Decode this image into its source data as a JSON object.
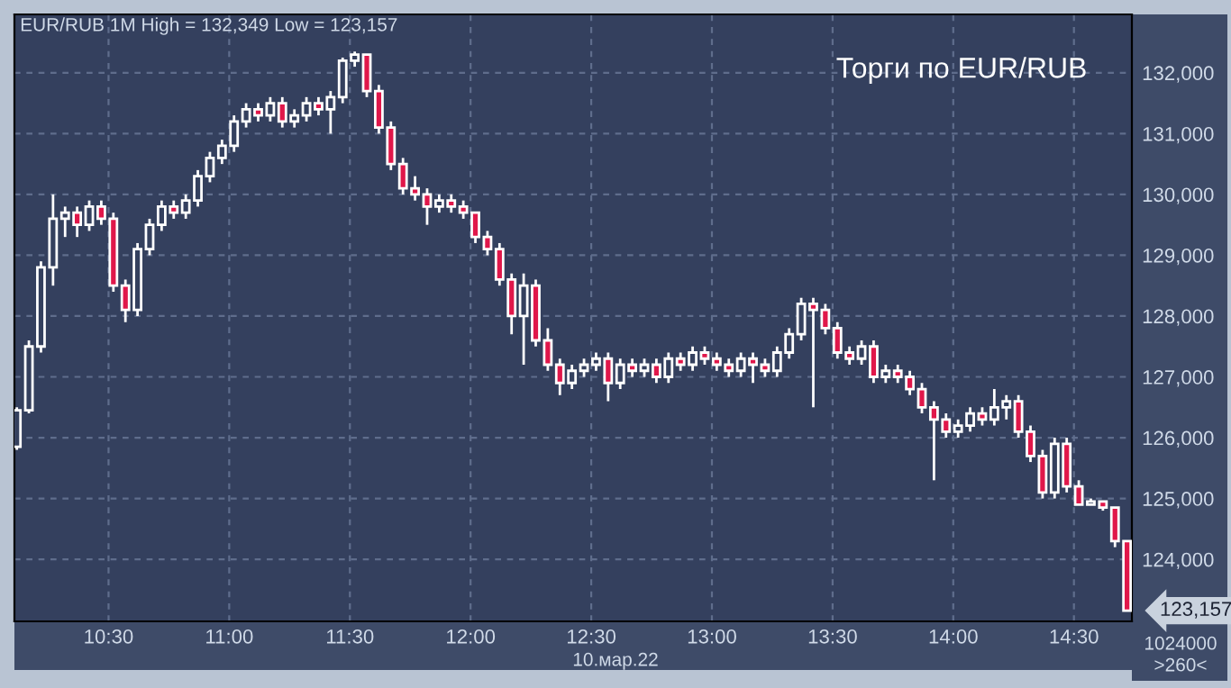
{
  "chart_data": {
    "type": "candlestick",
    "title": "Торги по EUR/RUB",
    "subtitle": "EUR/RUB 1M High = 132,349 Low = 123,157",
    "annotations": [
      "10.мар.22",
      "1024000",
      ">260<",
      "123,157"
    ],
    "x": [
      10.12,
      10.17,
      10.22,
      10.27,
      10.32,
      10.37,
      10.42,
      10.47,
      10.52,
      10.57,
      10.62,
      10.67,
      10.72,
      10.77,
      10.82,
      10.87,
      10.92,
      10.97,
      11.02,
      11.07,
      11.12,
      11.17,
      11.22,
      11.27,
      11.32,
      11.37,
      11.42,
      11.47,
      11.52,
      11.57,
      11.62,
      11.67,
      11.72,
      11.77,
      11.82,
      11.87,
      11.92,
      11.97,
      12.02,
      12.07,
      12.12,
      12.17,
      12.22,
      12.27,
      12.32,
      12.37,
      12.42,
      12.47,
      12.52,
      12.57,
      12.62,
      12.67,
      12.72,
      12.77,
      12.82,
      12.87,
      12.92,
      12.97,
      13.02,
      13.07,
      13.12,
      13.17,
      13.22,
      13.27,
      13.32,
      13.37,
      13.42,
      13.47,
      13.52,
      13.57,
      13.62,
      13.67,
      13.72,
      13.77,
      13.82,
      13.87,
      13.92,
      13.97,
      14.02,
      14.07,
      14.12,
      14.17,
      14.22,
      14.27,
      14.32,
      14.37,
      14.42,
      14.47,
      14.52,
      14.57,
      14.62,
      14.67,
      14.72
    ],
    "ohlc": [
      [
        125850,
        126500,
        125800,
        126450
      ],
      [
        126450,
        127600,
        126400,
        127500
      ],
      [
        127500,
        128900,
        127400,
        128800
      ],
      [
        128800,
        130000,
        128500,
        129600
      ],
      [
        129600,
        129800,
        129300,
        129700
      ],
      [
        129700,
        129800,
        129300,
        129500
      ],
      [
        129500,
        129900,
        129400,
        129800
      ],
      [
        129800,
        129900,
        129500,
        129600
      ],
      [
        129600,
        129700,
        128400,
        128500
      ],
      [
        128500,
        128600,
        127900,
        128100
      ],
      [
        128100,
        129200,
        128000,
        129100
      ],
      [
        129100,
        129600,
        129000,
        129500
      ],
      [
        129500,
        129900,
        129400,
        129800
      ],
      [
        129800,
        129900,
        129600,
        129700
      ],
      [
        129700,
        130000,
        129600,
        129900
      ],
      [
        129900,
        130400,
        129800,
        130300
      ],
      [
        130300,
        130700,
        130200,
        130600
      ],
      [
        130600,
        130900,
        130500,
        130800
      ],
      [
        130800,
        131300,
        130700,
        131200
      ],
      [
        131200,
        131500,
        131100,
        131400
      ],
      [
        131400,
        131500,
        131200,
        131300
      ],
      [
        131300,
        131600,
        131200,
        131500
      ],
      [
        131500,
        131600,
        131100,
        131200
      ],
      [
        131200,
        131400,
        131100,
        131300
      ],
      [
        131300,
        131600,
        131200,
        131500
      ],
      [
        131500,
        131600,
        131300,
        131400
      ],
      [
        131400,
        131700,
        131000,
        131600
      ],
      [
        131600,
        132250,
        131500,
        132200
      ],
      [
        132200,
        132349,
        132100,
        132300
      ],
      [
        132300,
        132300,
        131600,
        131700
      ],
      [
        131700,
        131800,
        131000,
        131100
      ],
      [
        131100,
        131200,
        130400,
        130500
      ],
      [
        130500,
        130600,
        130000,
        130100
      ],
      [
        130100,
        130300,
        129900,
        130000
      ],
      [
        130000,
        130100,
        129500,
        129800
      ],
      [
        129800,
        130000,
        129700,
        129900
      ],
      [
        129900,
        130000,
        129700,
        129800
      ],
      [
        129800,
        129900,
        129600,
        129700
      ],
      [
        129700,
        129700,
        129200,
        129300
      ],
      [
        129300,
        129400,
        129000,
        129100
      ],
      [
        129100,
        129200,
        128500,
        128600
      ],
      [
        128600,
        128700,
        127700,
        128000
      ],
      [
        128000,
        128700,
        127200,
        128500
      ],
      [
        128500,
        128600,
        127500,
        127600
      ],
      [
        127600,
        127800,
        127100,
        127200
      ],
      [
        127200,
        127300,
        126700,
        126900
      ],
      [
        126900,
        127200,
        126800,
        127100
      ],
      [
        127100,
        127300,
        127000,
        127200
      ],
      [
        127200,
        127400,
        127100,
        127300
      ],
      [
        127300,
        127400,
        126600,
        126900
      ],
      [
        126900,
        127300,
        126800,
        127200
      ],
      [
        127200,
        127300,
        127000,
        127100
      ],
      [
        127100,
        127300,
        127000,
        127200
      ],
      [
        127200,
        127300,
        126900,
        127000
      ],
      [
        127000,
        127400,
        126900,
        127300
      ],
      [
        127300,
        127400,
        127100,
        127200
      ],
      [
        127200,
        127500,
        127100,
        127400
      ],
      [
        127400,
        127500,
        127200,
        127300
      ],
      [
        127300,
        127400,
        127100,
        127200
      ],
      [
        127200,
        127300,
        127000,
        127100
      ],
      [
        127100,
        127400,
        127000,
        127300
      ],
      [
        127300,
        127400,
        126900,
        127200
      ],
      [
        127200,
        127300,
        127000,
        127100
      ],
      [
        127100,
        127500,
        127000,
        127400
      ],
      [
        127400,
        127800,
        127300,
        127700
      ],
      [
        127700,
        128300,
        127600,
        128200
      ],
      [
        128200,
        128300,
        126500,
        128100
      ],
      [
        128100,
        128200,
        127700,
        127800
      ],
      [
        127800,
        127900,
        127300,
        127400
      ],
      [
        127400,
        127500,
        127200,
        127300
      ],
      [
        127300,
        127600,
        127200,
        127500
      ],
      [
        127500,
        127600,
        126900,
        127000
      ],
      [
        127000,
        127200,
        126900,
        127100
      ],
      [
        127100,
        127200,
        126900,
        127000
      ],
      [
        127000,
        127100,
        126700,
        126800
      ],
      [
        126800,
        126900,
        126400,
        126500
      ],
      [
        126500,
        126600,
        125300,
        126300
      ],
      [
        126300,
        126400,
        126000,
        126100
      ],
      [
        126100,
        126300,
        126000,
        126200
      ],
      [
        126200,
        126500,
        126100,
        126400
      ],
      [
        126400,
        126500,
        126200,
        126300
      ],
      [
        126300,
        126800,
        126200,
        126500
      ],
      [
        126500,
        126700,
        126300,
        126600
      ],
      [
        126600,
        126700,
        126000,
        126100
      ],
      [
        126100,
        126200,
        125600,
        125700
      ],
      [
        125700,
        125800,
        125000,
        125100
      ],
      [
        125100,
        126000,
        125000,
        125900
      ],
      [
        125900,
        126000,
        125100,
        125200
      ],
      [
        125200,
        125300,
        124900,
        124900
      ],
      [
        124900,
        125000,
        124900,
        124950
      ],
      [
        124950,
        124950,
        124800,
        124850
      ],
      [
        124850,
        124850,
        124200,
        124300
      ],
      [
        124300,
        124300,
        123157,
        123157
      ]
    ],
    "colors": [
      "#ffffff",
      "#ffffff",
      "#ffffff",
      "#ffffff",
      "#ffffff",
      "#e0174a",
      "#ffffff",
      "#e0174a",
      "#e0174a",
      "#e0174a",
      "#ffffff",
      "#ffffff",
      "#ffffff",
      "#e0174a",
      "#ffffff",
      "#ffffff",
      "#ffffff",
      "#ffffff",
      "#ffffff",
      "#ffffff",
      "#e0174a",
      "#ffffff",
      "#e0174a",
      "#ffffff",
      "#ffffff",
      "#e0174a",
      "#ffffff",
      "#ffffff",
      "#ffffff",
      "#e0174a",
      "#e0174a",
      "#e0174a",
      "#e0174a",
      "#e0174a",
      "#e0174a",
      "#ffffff",
      "#e0174a",
      "#e0174a",
      "#e0174a",
      "#e0174a",
      "#e0174a",
      "#e0174a",
      "#ffffff",
      "#e0174a",
      "#e0174a",
      "#e0174a",
      "#ffffff",
      "#ffffff",
      "#ffffff",
      "#e0174a",
      "#ffffff",
      "#e0174a",
      "#ffffff",
      "#e0174a",
      "#ffffff",
      "#e0174a",
      "#ffffff",
      "#e0174a",
      "#e0174a",
      "#e0174a",
      "#ffffff",
      "#e0174a",
      "#e0174a",
      "#ffffff",
      "#ffffff",
      "#ffffff",
      "#e0174a",
      "#e0174a",
      "#e0174a",
      "#e0174a",
      "#ffffff",
      "#e0174a",
      "#ffffff",
      "#e0174a",
      "#e0174a",
      "#e0174a",
      "#e0174a",
      "#e0174a",
      "#ffffff",
      "#ffffff",
      "#e0174a",
      "#ffffff",
      "#ffffff",
      "#e0174a",
      "#e0174a",
      "#e0174a",
      "#ffffff",
      "#e0174a",
      "#e0174a",
      "#ffffff",
      "#e0174a",
      "#e0174a",
      "#e0174a"
    ],
    "xlim": [
      10.11,
      14.74
    ],
    "xticks": [
      {
        "value": 10.5,
        "label": "10:30"
      },
      {
        "value": 11.0,
        "label": "11:00"
      },
      {
        "value": 11.5,
        "label": "11:30"
      },
      {
        "value": 12.0,
        "label": "12:00"
      },
      {
        "value": 12.5,
        "label": "12:30"
      },
      {
        "value": 13.0,
        "label": "13:00"
      },
      {
        "value": 13.5,
        "label": "13:30"
      },
      {
        "value": 14.0,
        "label": "14:00"
      },
      {
        "value": 14.5,
        "label": "14:30"
      }
    ],
    "ylim": [
      122980,
      132960
    ],
    "yticks": [
      {
        "value": 124000,
        "label": "124,000"
      },
      {
        "value": 125000,
        "label": "125,000"
      },
      {
        "value": 126000,
        "label": "126,000"
      },
      {
        "value": 127000,
        "label": "127,000"
      },
      {
        "value": 128000,
        "label": "128,000"
      },
      {
        "value": 129000,
        "label": "129,000"
      },
      {
        "value": 130000,
        "label": "130,000"
      },
      {
        "value": 131000,
        "label": "131,000"
      },
      {
        "value": 132000,
        "label": "132,000"
      }
    ],
    "grid": true
  }
}
